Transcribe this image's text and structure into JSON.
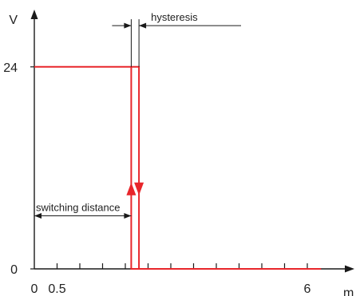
{
  "colors": {
    "axis": "#1a1a1a",
    "signal": "#e8262b",
    "annotation": "#1a1a1a",
    "background": "#ffffff"
  },
  "chart_data": {
    "type": "line",
    "xlabel": "m",
    "ylabel": "V",
    "x_ticks": [
      {
        "value": 0,
        "label": "0"
      },
      {
        "value": 0.5,
        "label": "0.5"
      },
      {
        "value": 1,
        "label": ""
      },
      {
        "value": 1.5,
        "label": ""
      },
      {
        "value": 2,
        "label": ""
      },
      {
        "value": 2.5,
        "label": ""
      },
      {
        "value": 3,
        "label": ""
      },
      {
        "value": 3.5,
        "label": ""
      },
      {
        "value": 4,
        "label": ""
      },
      {
        "value": 4.5,
        "label": ""
      },
      {
        "value": 5,
        "label": ""
      },
      {
        "value": 5.5,
        "label": ""
      },
      {
        "value": 6,
        "label": "6"
      }
    ],
    "y_ticks": [
      {
        "value": 0,
        "label": "0"
      },
      {
        "value": 24,
        "label": "24"
      }
    ],
    "xlim": [
      0,
      6.3
    ],
    "ylim": [
      0,
      30
    ],
    "series": [
      {
        "values_desc": "falling",
        "x": [
          0,
          2.13,
          2.13,
          6.3
        ],
        "y": [
          24,
          24,
          0,
          0
        ],
        "arrow": {
          "x": 2.13,
          "y": 9.5,
          "direction": "up"
        }
      },
      {
        "values_desc": "rising",
        "x": [
          2.13,
          2.3,
          2.3,
          6.3
        ],
        "y": [
          24,
          24,
          0,
          0
        ],
        "arrow": {
          "x": 2.3,
          "y": 9.5,
          "direction": "down"
        }
      }
    ],
    "annotations": [
      {
        "text": "switching distance",
        "from_x": 0,
        "to_x": 2.13,
        "y": 6.3,
        "style": "double-arrow"
      },
      {
        "text": "hysteresis",
        "from_x": 2.13,
        "to_x": 2.3,
        "y": 28.9,
        "style": "arrows-inward"
      }
    ]
  }
}
